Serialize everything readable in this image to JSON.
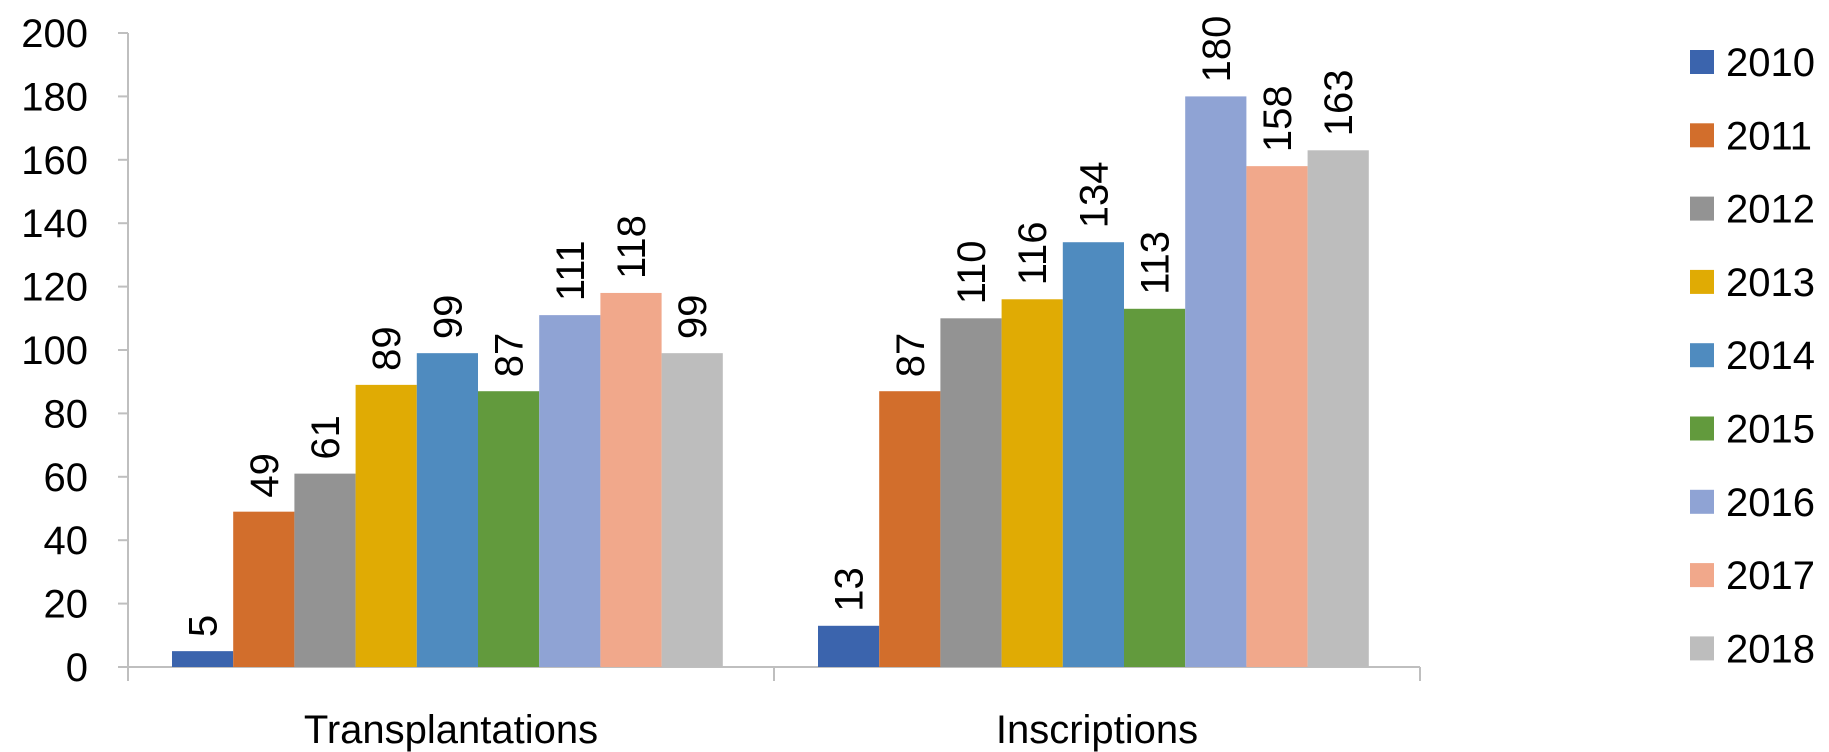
{
  "chart_data": {
    "type": "bar",
    "title": "",
    "xlabel": "",
    "ylabel": "",
    "categories": [
      "Transplantations",
      "Inscriptions"
    ],
    "ylim": [
      0,
      200
    ],
    "yticks": [
      0,
      20,
      40,
      60,
      80,
      100,
      120,
      140,
      160,
      180,
      200
    ],
    "grid": false,
    "legend_position": "right",
    "data_labels": "rotated-above-bars",
    "series": [
      {
        "name": "2010",
        "color": "#3b64ad",
        "values": [
          5,
          13
        ]
      },
      {
        "name": "2011",
        "color": "#d26e2c",
        "values": [
          49,
          87
        ]
      },
      {
        "name": "2012",
        "color": "#939393",
        "values": [
          61,
          110
        ]
      },
      {
        "name": "2013",
        "color": "#e0ab04",
        "values": [
          89,
          116
        ]
      },
      {
        "name": "2014",
        "color": "#4f8bbf",
        "values": [
          99,
          134
        ]
      },
      {
        "name": "2015",
        "color": "#629a3d",
        "values": [
          87,
          113
        ]
      },
      {
        "name": "2016",
        "color": "#8fa3d4",
        "values": [
          111,
          180
        ]
      },
      {
        "name": "2017",
        "color": "#f1a88b",
        "values": [
          118,
          158
        ]
      },
      {
        "name": "2018",
        "color": "#bdbdbd",
        "values": [
          99,
          163
        ]
      }
    ]
  }
}
